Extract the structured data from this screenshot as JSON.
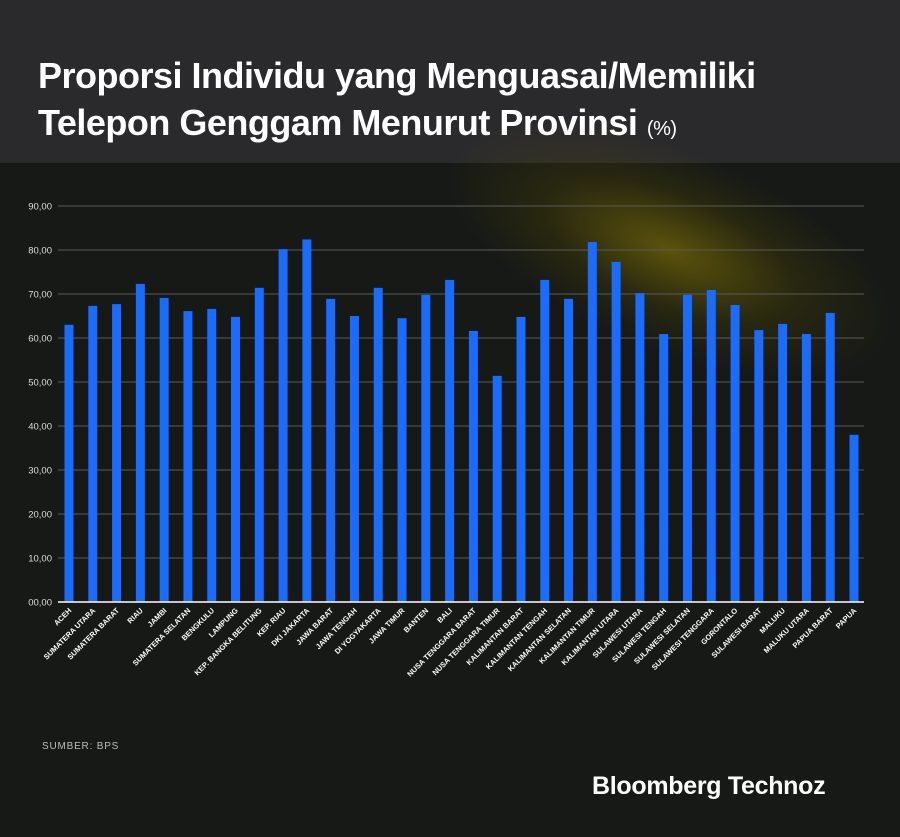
{
  "title_line1": "Proporsi Individu yang Menguasai/Memiliki",
  "title_line2": "Telepon Genggam Menurut Provinsi",
  "title_unit": "(%)",
  "source": "SUMBER: BPS",
  "brand": "Bloomberg Technoz",
  "colors": {
    "bar": "#1a6bff",
    "background": "#161916",
    "header": "#2a2a2d"
  },
  "chart_data": {
    "type": "bar",
    "title": "Proporsi Individu yang Menguasai/Memiliki Telepon Genggam Menurut Provinsi (%)",
    "xlabel": "",
    "ylabel": "",
    "ylim": [
      0,
      90
    ],
    "grid": true,
    "yticks": [
      "00,00",
      "10,00",
      "20,00",
      "30,00",
      "40,00",
      "50,00",
      "60,00",
      "70,00",
      "80,00",
      "90,00"
    ],
    "categories": [
      "ACEH",
      "SUMATERA UTARA",
      "SUMATERA BARAT",
      "RIAU",
      "JAMBI",
      "SUMATERA SELATAN",
      "BENGKULU",
      "LAMPUNG",
      "KEP. BANGKA BELITUNG",
      "KEP. RIAU",
      "DKI JAKARTA",
      "JAWA BARAT",
      "JAWA TENGAH",
      "DI YOGYAKARTA",
      "JAWA TIMUR",
      "BANTEN",
      "BALI",
      "NUSA TENGGARA BARAT",
      "NUSA TENGGARA TIMUR",
      "KALIMANTAN BARAT",
      "KALIMANTAN TENGAH",
      "KALIMANTAN SELATAN",
      "KALIMANTAN TIMUR",
      "KALIMANTAN UTARA",
      "SULAWESI UTARA",
      "SULAWESI TENGAH",
      "SULAWESI SELATAN",
      "SULAWESI TENGGARA",
      "GORONTALO",
      "SULAWESI BARAT",
      "MALUKU",
      "MALUKU UTARA",
      "PAPUA BARAT",
      "PAPUA"
    ],
    "values": [
      63.0,
      67.3,
      67.7,
      72.3,
      69.1,
      66.1,
      66.6,
      64.8,
      71.4,
      80.2,
      82.4,
      68.9,
      65.0,
      71.4,
      64.5,
      69.8,
      73.2,
      61.6,
      51.4,
      64.8,
      73.2,
      68.9,
      81.8,
      77.3,
      70.2,
      60.9,
      69.8,
      70.9,
      67.5,
      61.8,
      63.2,
      60.9,
      65.7,
      38.0
    ]
  }
}
